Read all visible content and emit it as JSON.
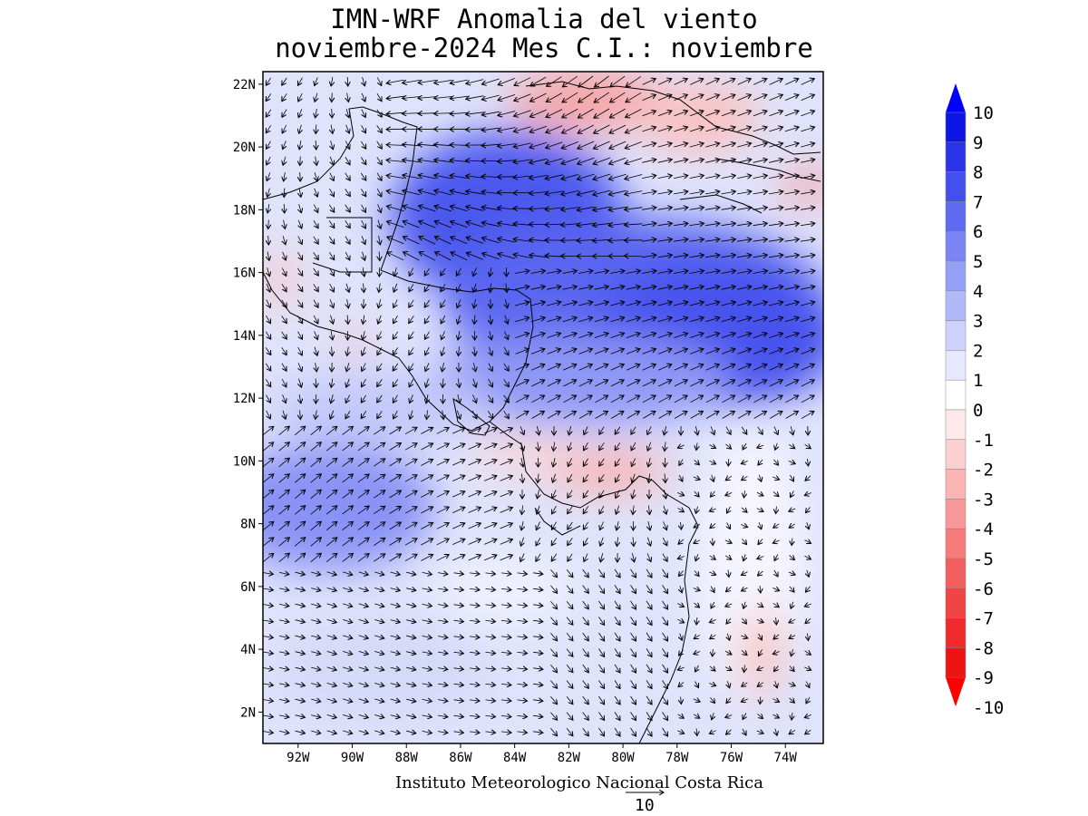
{
  "title": {
    "line1": "IMN-WRF Anomalia del viento",
    "line2": "noviembre-2024 Mes C.I.: noviembre"
  },
  "map": {
    "lat_labels": [
      "22N",
      "20N",
      "18N",
      "16N",
      "14N",
      "12N",
      "10N",
      "8N",
      "6N",
      "4N",
      "2N"
    ],
    "lon_labels": [
      "92W",
      "90W",
      "88W",
      "86W",
      "84W",
      "82W",
      "80W",
      "78W",
      "76W",
      "74W"
    ],
    "lat_range": [
      1,
      22.4
    ],
    "lon_range": [
      -93.3,
      -72.6
    ]
  },
  "colorbar": {
    "labels": [
      "10",
      "9",
      "8",
      "7",
      "6",
      "5",
      "4",
      "3",
      "2",
      "1",
      "0",
      "-1",
      "-2",
      "-3",
      "-4",
      "-5",
      "-6",
      "-7",
      "-8",
      "-9",
      "-10"
    ],
    "colors": [
      "#0d16e6",
      "#2a35ea",
      "#4450ee",
      "#5e6af1",
      "#7a84f4",
      "#959ff6",
      "#b2b9f8",
      "#ccd2fb",
      "#e6e9fd",
      "#ffffff",
      "#fde9e9",
      "#fcd0d0",
      "#fab4b4",
      "#f89898",
      "#f67b7b",
      "#f35f5f",
      "#f14545",
      "#ef2b2b",
      "#ee1414"
    ],
    "top_arrow_color": "#0000ff",
    "bottom_arrow_color": "#ff0000"
  },
  "footer": {
    "credit": "Instituto Meteorologico Nacional Costa Rica",
    "reference_vector_value": "10"
  }
}
